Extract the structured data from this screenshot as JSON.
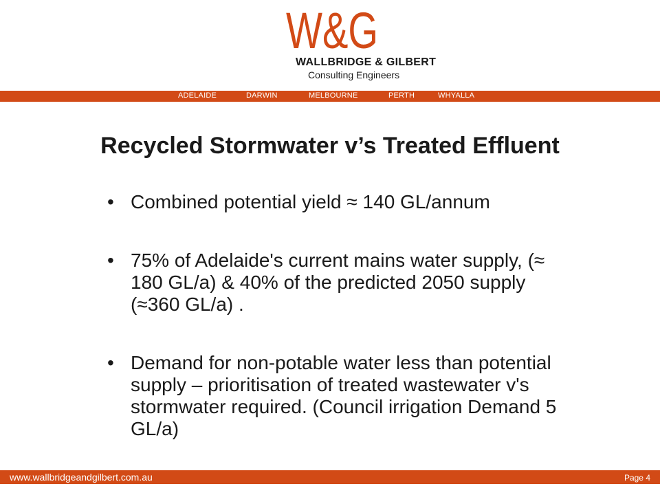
{
  "colors": {
    "brand": "#d24a16",
    "text": "#1a1a1a"
  },
  "logo": {
    "mark": "W&G",
    "name": "WALLBRIDGE & GILBERT",
    "subtitle": "Consulting Engineers"
  },
  "header": {
    "cities": [
      "ADELAIDE",
      "DARWIN",
      "MELBOURNE",
      "PERTH",
      "WHYALLA"
    ]
  },
  "slide": {
    "title": "Recycled Stormwater v’s Treated Effluent",
    "bullets": [
      "Combined potential yield ≈ 140 GL/annum",
      "75% of Adelaide's current mains water supply, (≈ 180 GL/a) & 40% of the predicted 2050 supply (≈360 GL/a) .",
      "Demand for non-potable water less than potential supply – prioritisation of treated wastewater v's stormwater required. (Council irrigation Demand 5 GL/a)"
    ]
  },
  "footer": {
    "url": "www.wallbridgeandgilbert.com.au",
    "page": "Page 4"
  }
}
